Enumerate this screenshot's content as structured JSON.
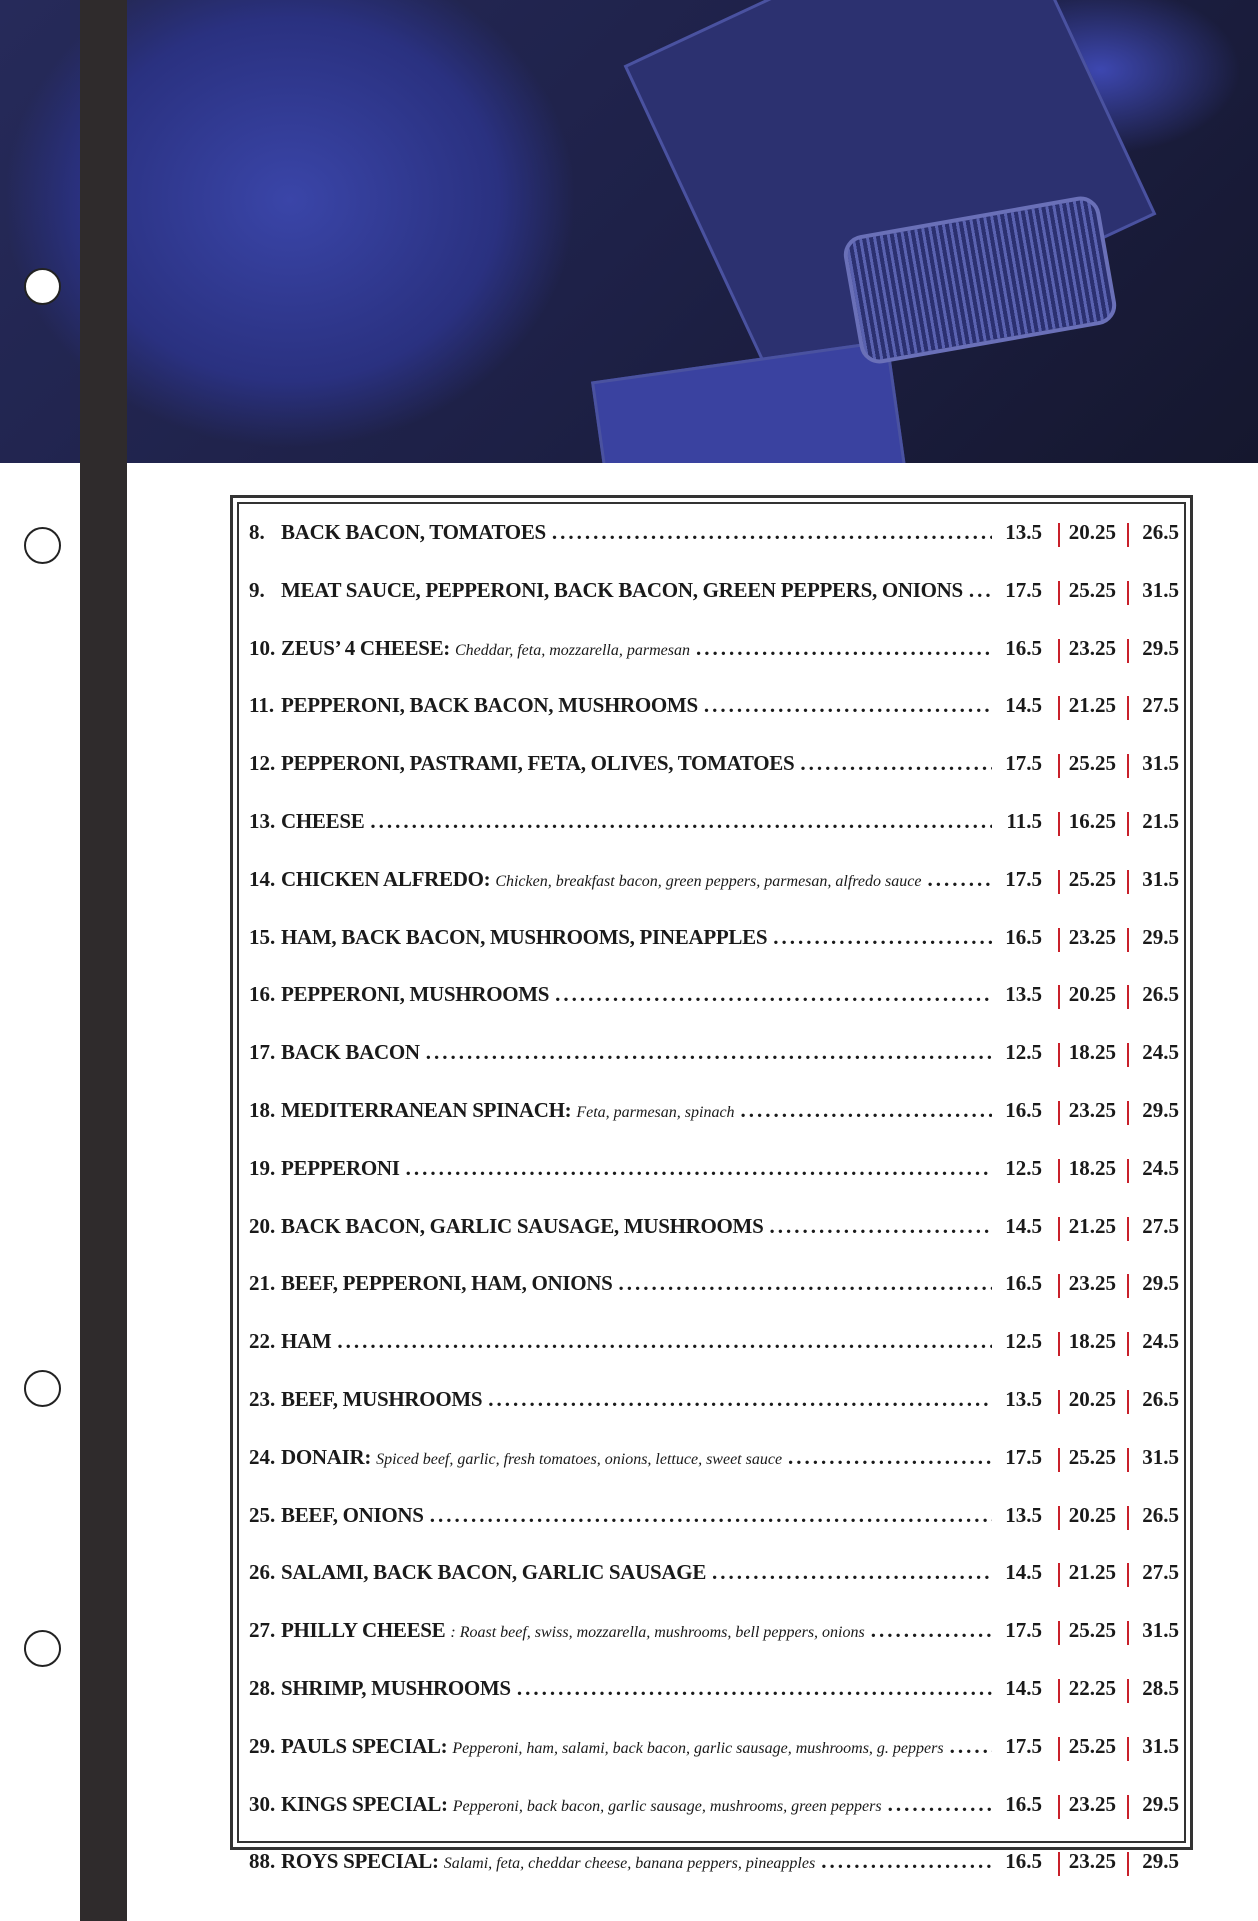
{
  "menu": {
    "items": [
      {
        "num": "8.",
        "name": "BACK BACON, TOMATOES",
        "desc": "",
        "prices": [
          "13.5",
          "20.25",
          "26.5"
        ]
      },
      {
        "num": "9.",
        "name": "MEAT SAUCE, PEPPERONI, BACK BACON, GREEN PEPPERS, ONIONS",
        "desc": "",
        "prices": [
          "17.5",
          "25.25",
          "31.5"
        ]
      },
      {
        "num": "10.",
        "name": "ZEUS’ 4 CHEESE:",
        "desc": "Cheddar, feta, mozzarella, parmesan",
        "prices": [
          "16.5",
          "23.25",
          "29.5"
        ]
      },
      {
        "num": "11.",
        "name": "PEPPERONI, BACK BACON, MUSHROOMS",
        "desc": "",
        "prices": [
          "14.5",
          "21.25",
          "27.5"
        ]
      },
      {
        "num": "12.",
        "name": "PEPPERONI, PASTRAMI, FETA, OLIVES, TOMATOES",
        "desc": "",
        "prices": [
          "17.5",
          "25.25",
          "31.5"
        ]
      },
      {
        "num": "13.",
        "name": "CHEESE",
        "desc": "",
        "prices": [
          "11.5",
          "16.25",
          "21.5"
        ]
      },
      {
        "num": "14.",
        "name": "CHICKEN ALFREDO:",
        "desc": "Chicken, breakfast bacon, green peppers, parmesan, alfredo sauce",
        "prices": [
          "17.5",
          "25.25",
          "31.5"
        ]
      },
      {
        "num": "15.",
        "name": "HAM, BACK BACON, MUSHROOMS, PINEAPPLES",
        "desc": "",
        "prices": [
          "16.5",
          "23.25",
          "29.5"
        ]
      },
      {
        "num": "16.",
        "name": "PEPPERONI, MUSHROOMS",
        "desc": "",
        "prices": [
          "13.5",
          "20.25",
          "26.5"
        ]
      },
      {
        "num": "17.",
        "name": "BACK BACON",
        "desc": "",
        "prices": [
          "12.5",
          "18.25",
          "24.5"
        ]
      },
      {
        "num": "18.",
        "name": "MEDITERRANEAN SPINACH:",
        "desc": "Feta, parmesan, spinach",
        "prices": [
          "16.5",
          "23.25",
          "29.5"
        ]
      },
      {
        "num": "19.",
        "name": "PEPPERONI",
        "desc": "",
        "prices": [
          "12.5",
          "18.25",
          "24.5"
        ]
      },
      {
        "num": "20.",
        "name": "BACK BACON, GARLIC SAUSAGE, MUSHROOMS",
        "desc": "",
        "prices": [
          "14.5",
          "21.25",
          "27.5"
        ]
      },
      {
        "num": "21.",
        "name": "BEEF, PEPPERONI, HAM, ONIONS",
        "desc": "",
        "prices": [
          "16.5",
          "23.25",
          "29.5"
        ]
      },
      {
        "num": "22.",
        "name": "HAM",
        "desc": "",
        "prices": [
          "12.5",
          "18.25",
          "24.5"
        ]
      },
      {
        "num": "23.",
        "name": "BEEF, MUSHROOMS",
        "desc": "",
        "prices": [
          "13.5",
          "20.25",
          "26.5"
        ]
      },
      {
        "num": "24.",
        "name": "DONAIR:",
        "desc": "Spiced beef, garlic, fresh tomatoes, onions, lettuce, sweet sauce",
        "prices": [
          "17.5",
          "25.25",
          "31.5"
        ]
      },
      {
        "num": "25.",
        "name": "BEEF, ONIONS",
        "desc": "",
        "prices": [
          "13.5",
          "20.25",
          "26.5"
        ]
      },
      {
        "num": "26.",
        "name": "SALAMI, BACK BACON, GARLIC SAUSAGE",
        "desc": "",
        "prices": [
          "14.5",
          "21.25",
          "27.5"
        ]
      },
      {
        "num": "27.",
        "name": "PHILLY CHEESE",
        "desc": ": Roast beef, swiss, mozzarella, mushrooms, bell peppers, onions",
        "prices": [
          "17.5",
          "25.25",
          "31.5"
        ]
      },
      {
        "num": "28.",
        "name": "SHRIMP, MUSHROOMS",
        "desc": "",
        "prices": [
          "14.5",
          "22.25",
          "28.5"
        ]
      },
      {
        "num": "29.",
        "name": "PAULS SPECIAL:",
        "desc": "Pepperoni, ham, salami, back bacon, garlic sausage, mushrooms, g. peppers",
        "prices": [
          "17.5",
          "25.25",
          "31.5"
        ]
      },
      {
        "num": "30.",
        "name": "KINGS SPECIAL:",
        "desc": "Pepperoni, back bacon, garlic sausage, mushrooms, green peppers",
        "prices": [
          "16.5",
          "23.25",
          "29.5"
        ]
      },
      {
        "num": "88.",
        "name": "ROYS SPECIAL:",
        "desc": "Salami, feta, cheddar cheese, banana peppers, pineapples",
        "prices": [
          "16.5",
          "23.25",
          "29.5"
        ]
      }
    ]
  },
  "colors": {
    "separator": "#c8202a",
    "photo_tint": "#2a3180",
    "binder_strip": "#2f2b2c"
  }
}
